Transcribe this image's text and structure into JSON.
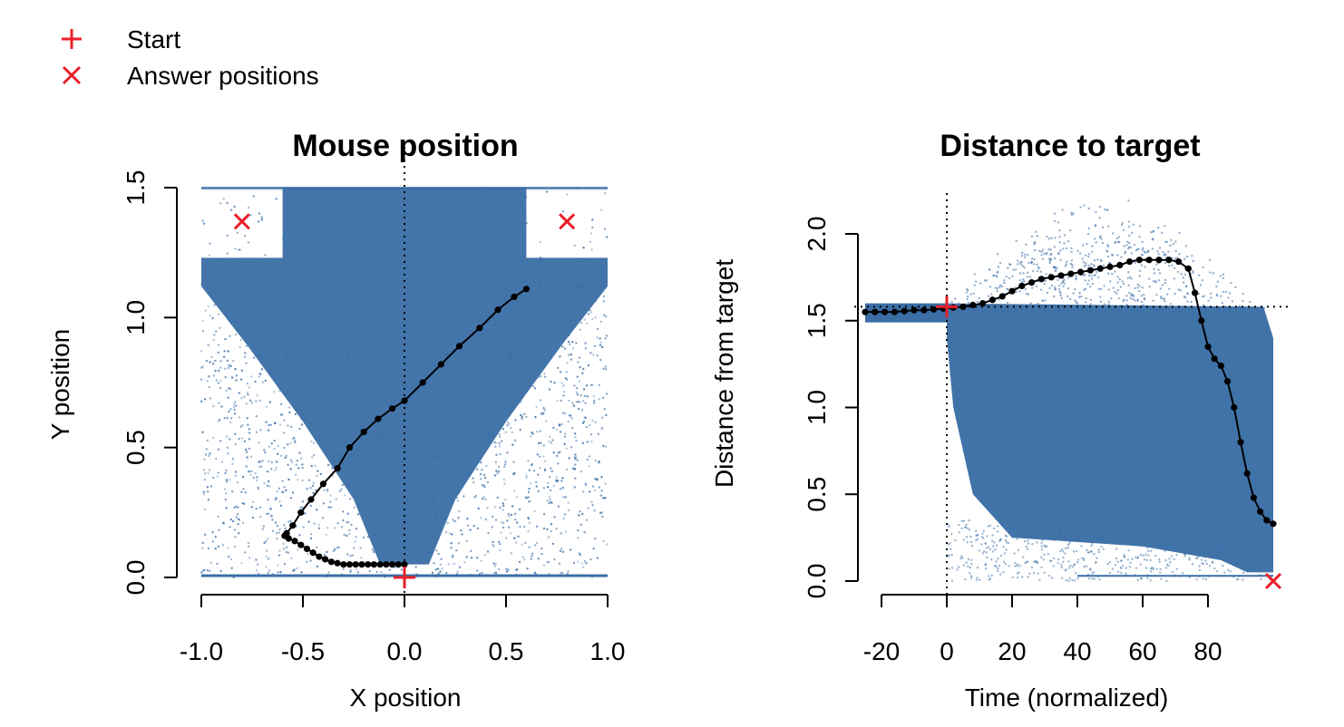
{
  "legend": {
    "items": [
      {
        "label": "Start",
        "marker": "plus",
        "color": "#e8202a"
      },
      {
        "label": "Answer positions",
        "marker": "cross",
        "color": "#e8202a"
      }
    ]
  },
  "colors": {
    "cloud": "#3a6ea5",
    "mean_path": "#000000",
    "marker": "#e8202a"
  },
  "chart_data": [
    {
      "type": "scatter",
      "title": "Mouse position",
      "xlabel": "X position",
      "ylabel": "Y position",
      "xlim": [
        -1.0,
        1.0
      ],
      "ylim": [
        0.0,
        1.5
      ],
      "xticks": [
        -1.0,
        -0.5,
        0.0,
        0.5,
        1.0
      ],
      "xtick_labels": [
        "-1.0",
        "-0.5",
        "0.0",
        "0.5",
        "1.0"
      ],
      "yticks": [
        0.0,
        0.5,
        1.0,
        1.5
      ],
      "ytick_labels": [
        "0.0",
        "0.5",
        "1.0",
        "1.5"
      ],
      "reference_lines": [
        {
          "orientation": "vertical",
          "value": 0.0,
          "style": "dotted"
        }
      ],
      "start": {
        "x": 0.0,
        "y": 0.0
      },
      "answer_positions": [
        {
          "x": -0.8,
          "y": 1.37
        },
        {
          "x": 0.8,
          "y": 1.37
        }
      ],
      "mean_trajectory": {
        "x": [
          0.0,
          -0.03,
          -0.06,
          -0.09,
          -0.12,
          -0.15,
          -0.18,
          -0.21,
          -0.24,
          -0.27,
          -0.3,
          -0.33,
          -0.36,
          -0.39,
          -0.42,
          -0.45,
          -0.48,
          -0.51,
          -0.54,
          -0.57,
          -0.59,
          -0.58,
          -0.55,
          -0.51,
          -0.46,
          -0.4,
          -0.33,
          -0.27,
          -0.2,
          -0.13,
          -0.06,
          0.0,
          0.09,
          0.18,
          0.27,
          0.37,
          0.46,
          0.54,
          0.6
        ],
        "y": [
          0.05,
          0.05,
          0.05,
          0.05,
          0.05,
          0.05,
          0.05,
          0.05,
          0.05,
          0.05,
          0.05,
          0.055,
          0.06,
          0.07,
          0.08,
          0.095,
          0.11,
          0.125,
          0.14,
          0.15,
          0.16,
          0.17,
          0.2,
          0.25,
          0.3,
          0.36,
          0.42,
          0.5,
          0.56,
          0.61,
          0.65,
          0.68,
          0.75,
          0.82,
          0.89,
          0.96,
          1.03,
          1.08,
          1.11
        ]
      },
      "cloud_description_points": "dense blue trajectory cloud"
    },
    {
      "type": "scatter",
      "title": "Distance to target",
      "xlabel": "Time (normalized)",
      "ylabel": "Distance from target",
      "xlim": [
        -20,
        100
      ],
      "ylim": [
        0.0,
        2.0
      ],
      "xticks": [
        -20,
        0,
        20,
        40,
        60,
        80
      ],
      "xtick_labels": [
        "-20",
        "0",
        "20",
        "40",
        "60",
        "80"
      ],
      "yticks": [
        0.0,
        0.5,
        1.0,
        1.5,
        2.0
      ],
      "ytick_labels": [
        "0.0",
        "0.5",
        "1.0",
        "1.5",
        "2.0"
      ],
      "reference_lines": [
        {
          "orientation": "vertical",
          "value": 0,
          "style": "dotted"
        },
        {
          "orientation": "horizontal",
          "value": 1.58,
          "style": "dotted"
        }
      ],
      "start": {
        "x": 0,
        "y": 1.58
      },
      "answer_positions": [
        {
          "x": 100,
          "y": 0.0
        }
      ],
      "mean_trajectory": {
        "x": [
          -25,
          -22,
          -19,
          -16,
          -13,
          -10,
          -7,
          -4,
          -1,
          2,
          5,
          8,
          11,
          14,
          17,
          20,
          23,
          26,
          29,
          32,
          35,
          38,
          41,
          44,
          47,
          50,
          53,
          56,
          59,
          62,
          65,
          68,
          71,
          74,
          76,
          78,
          80,
          82,
          84,
          86,
          88,
          90,
          92,
          94,
          96,
          98,
          100
        ],
        "y": [
          1.55,
          1.55,
          1.55,
          1.55,
          1.555,
          1.56,
          1.56,
          1.565,
          1.57,
          1.575,
          1.58,
          1.59,
          1.6,
          1.62,
          1.64,
          1.67,
          1.7,
          1.72,
          1.74,
          1.75,
          1.76,
          1.77,
          1.78,
          1.79,
          1.8,
          1.81,
          1.82,
          1.84,
          1.85,
          1.85,
          1.85,
          1.85,
          1.84,
          1.8,
          1.66,
          1.5,
          1.35,
          1.28,
          1.24,
          1.15,
          1.0,
          0.8,
          0.62,
          0.48,
          0.4,
          0.35,
          0.33
        ]
      }
    }
  ]
}
